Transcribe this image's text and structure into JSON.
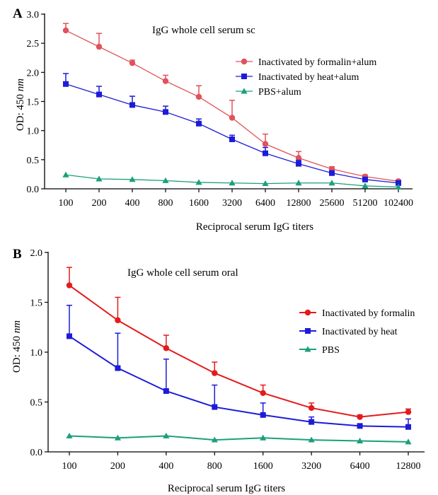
{
  "chart_data": [
    {
      "panel_label": "A",
      "type": "line",
      "title": "IgG whole cell serum sc",
      "xlabel": "Reciprocal serum IgG titers",
      "ylabel_prefix": "OD: 450 ",
      "ylabel_unit": "nm",
      "x_scale": "log2-categorical",
      "categories": [
        "100",
        "200",
        "400",
        "800",
        "1600",
        "3200",
        "6400",
        "12800",
        "25600",
        "51200",
        "102400"
      ],
      "ylim": [
        0,
        3.0
      ],
      "yticks": [
        "0.0",
        "0.5",
        "1.0",
        "1.5",
        "2.0",
        "2.5",
        "3.0"
      ],
      "grid": false,
      "legend_position": "upper-right",
      "series": [
        {
          "name": "Inactivated by formalin+alum",
          "color": "#e0535a",
          "marker": "circle",
          "values": [
            2.72,
            2.44,
            2.16,
            1.85,
            1.58,
            1.22,
            0.77,
            0.53,
            0.34,
            0.21,
            0.13
          ],
          "errors": [
            0.12,
            0.23,
            0.05,
            0.1,
            0.19,
            0.3,
            0.17,
            0.11,
            0.04,
            0.03,
            0.02
          ]
        },
        {
          "name": "Inactivated by heat+alum",
          "color": "#1c1cd8",
          "marker": "square",
          "values": [
            1.8,
            1.62,
            1.44,
            1.32,
            1.12,
            0.85,
            0.61,
            0.43,
            0.27,
            0.16,
            0.1
          ],
          "errors": [
            0.18,
            0.14,
            0.15,
            0.1,
            0.08,
            0.07,
            0.1,
            0.06,
            0.04,
            0.03,
            0.02
          ]
        },
        {
          "name": "PBS+alum",
          "color": "#1aa07a",
          "marker": "triangle",
          "values": [
            0.24,
            0.17,
            0.16,
            0.14,
            0.11,
            0.1,
            0.09,
            0.1,
            0.1,
            0.05,
            0.03
          ],
          "errors": [
            0,
            0,
            0,
            0,
            0,
            0,
            0,
            0,
            0,
            0,
            0
          ]
        }
      ]
    },
    {
      "panel_label": "B",
      "type": "line",
      "title": "IgG whole cell serum oral",
      "xlabel": "Reciprocal serum IgG titers",
      "ylabel_prefix": "OD: 450 ",
      "ylabel_unit": "nm",
      "x_scale": "log2-categorical",
      "categories": [
        "100",
        "200",
        "400",
        "800",
        "1600",
        "3200",
        "6400",
        "12800"
      ],
      "ylim": [
        0,
        2.0
      ],
      "yticks": [
        "0.0",
        "0.5",
        "1.0",
        "1.5",
        "2.0"
      ],
      "grid": false,
      "legend_position": "right",
      "series": [
        {
          "name": "Inactivated by formalin",
          "color": "#e41b1b",
          "marker": "circle",
          "values": [
            1.67,
            1.32,
            1.04,
            0.79,
            0.59,
            0.44,
            0.35,
            0.4
          ],
          "errors": [
            0.18,
            0.23,
            0.13,
            0.11,
            0.08,
            0.05,
            0.02,
            0.03
          ]
        },
        {
          "name": "Inactivated by heat",
          "color": "#1c1cd8",
          "marker": "square",
          "values": [
            1.16,
            0.84,
            0.61,
            0.45,
            0.37,
            0.3,
            0.26,
            0.25
          ],
          "errors": [
            0.31,
            0.35,
            0.32,
            0.22,
            0.12,
            0.05,
            0.02,
            0.08
          ]
        },
        {
          "name": "PBS",
          "color": "#1aa07a",
          "marker": "triangle",
          "values": [
            0.16,
            0.14,
            0.16,
            0.12,
            0.14,
            0.12,
            0.11,
            0.1
          ],
          "errors": [
            0,
            0,
            0,
            0,
            0,
            0,
            0,
            0
          ]
        }
      ]
    }
  ]
}
